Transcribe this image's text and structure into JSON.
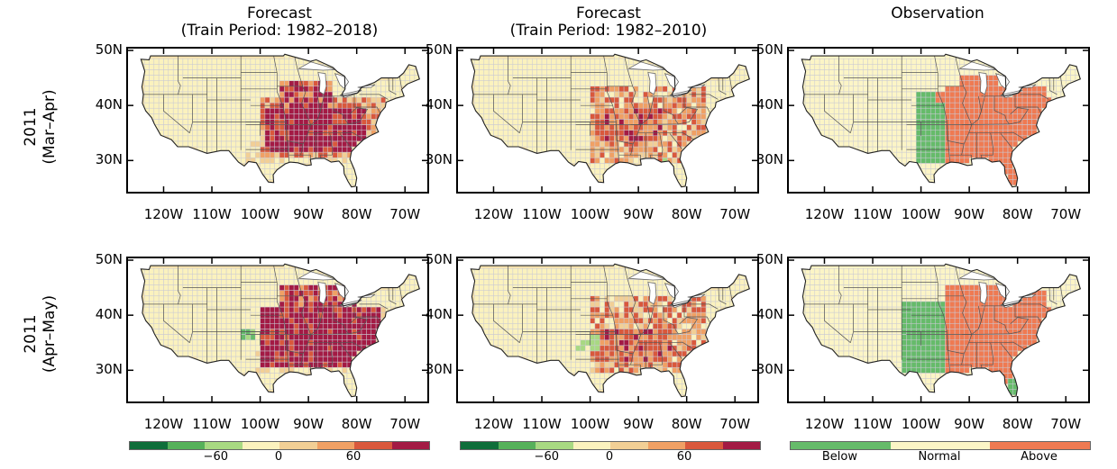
{
  "columns": [
    {
      "title_line1": "Forecast",
      "title_line2": "(Train Period: 1982–2018)"
    },
    {
      "title_line1": "Forecast",
      "title_line2": "(Train Period: 1982–2010)"
    },
    {
      "title_line1": "Observation",
      "title_line2": ""
    }
  ],
  "rows": [
    {
      "year": "2011",
      "period": "(Mar–Apr)"
    },
    {
      "year": "2011",
      "period": "(Apr–May)"
    }
  ],
  "lat_ticks": [
    "50N",
    "40N",
    "30N"
  ],
  "lon_ticks": [
    "120W",
    "110W",
    "100W",
    "90W",
    "80W",
    "70W"
  ],
  "colorbar_forecast": {
    "ticks": [
      "−60",
      "0",
      "60"
    ],
    "colors": [
      "#0f6e3a",
      "#56b15a",
      "#a8d982",
      "#fbf2be",
      "#f2cf95",
      "#f0a064",
      "#d9583c",
      "#a31a44"
    ]
  },
  "colorbar_observation": {
    "labels": [
      "Below",
      "Normal",
      "Above"
    ],
    "colors": [
      "#66bb6a",
      "#fcf5c6",
      "#ef7a52"
    ]
  },
  "colors": {
    "land": "#f6e2ae",
    "grid_cell": "#fbf2be",
    "obs_normal": "#fcf5c6",
    "dark_red": "#a31a44",
    "mid_red": "#d9583c",
    "orange": "#f0a064",
    "light_orange": "#f2cf95",
    "green": "#66bb6a",
    "light_green": "#a8d982",
    "obs_above": "#ef7a52"
  }
}
